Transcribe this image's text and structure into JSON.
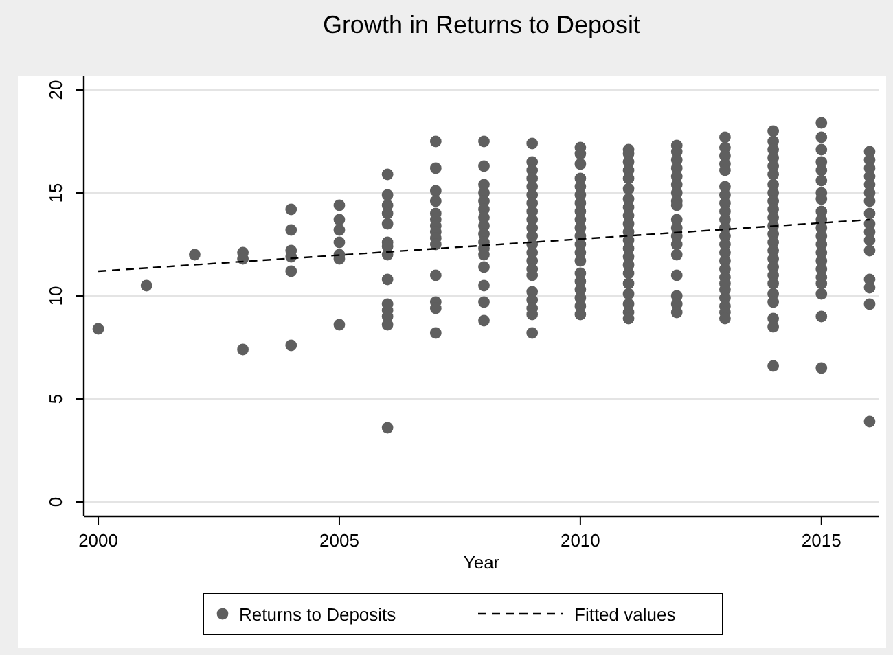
{
  "chart_data": {
    "type": "scatter",
    "title": "Growth in Returns to Deposit",
    "xlabel": "Year",
    "xlim": [
      1999.7,
      2016.2
    ],
    "xticks": [
      2000,
      2005,
      2010,
      2015
    ],
    "ylim": [
      -0.7,
      20.7
    ],
    "yticks": [
      0,
      5,
      10,
      15,
      20
    ],
    "grid": "y",
    "legend": "bottom",
    "series": [
      {
        "name": "Returns to Deposits",
        "color": "#5f5f5f",
        "marker": "circle",
        "x": [
          2000,
          2001,
          2002,
          2003,
          2003,
          2003,
          2004,
          2004,
          2004,
          2004,
          2004,
          2004,
          2005,
          2005,
          2005,
          2005,
          2005,
          2005,
          2005,
          2006,
          2006,
          2006,
          2006,
          2006,
          2006,
          2006,
          2006,
          2006,
          2006,
          2006,
          2006,
          2006,
          2006,
          2007,
          2007,
          2007,
          2007,
          2007,
          2007,
          2007,
          2007,
          2007,
          2007,
          2007,
          2007,
          2007,
          2007,
          2008,
          2008,
          2008,
          2008,
          2008,
          2008,
          2008,
          2008,
          2008,
          2008,
          2008,
          2008,
          2008,
          2008,
          2008,
          2008,
          2009,
          2009,
          2009,
          2009,
          2009,
          2009,
          2009,
          2009,
          2009,
          2009,
          2009,
          2009,
          2009,
          2009,
          2009,
          2009,
          2009,
          2009,
          2009,
          2009,
          2009,
          2010,
          2010,
          2010,
          2010,
          2010,
          2010,
          2010,
          2010,
          2010,
          2010,
          2010,
          2010,
          2010,
          2010,
          2010,
          2010,
          2010,
          2010,
          2010,
          2010,
          2011,
          2011,
          2011,
          2011,
          2011,
          2011,
          2011,
          2011,
          2011,
          2011,
          2011,
          2011,
          2011,
          2011,
          2011,
          2011,
          2011,
          2011,
          2011,
          2011,
          2011,
          2012,
          2012,
          2012,
          2012,
          2012,
          2012,
          2012,
          2012,
          2012,
          2012,
          2012,
          2012,
          2012,
          2012,
          2012,
          2012,
          2012,
          2012,
          2013,
          2013,
          2013,
          2013,
          2013,
          2013,
          2013,
          2013,
          2013,
          2013,
          2013,
          2013,
          2013,
          2013,
          2013,
          2013,
          2013,
          2013,
          2013,
          2013,
          2013,
          2013,
          2013,
          2014,
          2014,
          2014,
          2014,
          2014,
          2014,
          2014,
          2014,
          2014,
          2014,
          2014,
          2014,
          2014,
          2014,
          2014,
          2014,
          2014,
          2014,
          2014,
          2014,
          2014,
          2014,
          2014,
          2014,
          2015,
          2015,
          2015,
          2015,
          2015,
          2015,
          2015,
          2015,
          2015,
          2015,
          2015,
          2015,
          2015,
          2015,
          2015,
          2015,
          2015,
          2015,
          2015,
          2015,
          2015,
          2016,
          2016,
          2016,
          2016,
          2016,
          2016,
          2016,
          2016,
          2016,
          2016,
          2016,
          2016,
          2016,
          2016,
          2016,
          2016
        ],
        "values": [
          8.4,
          10.5,
          12.0,
          12.1,
          11.8,
          7.4,
          14.2,
          13.2,
          12.2,
          11.9,
          11.2,
          7.6,
          14.4,
          13.7,
          13.2,
          12.6,
          12.0,
          11.8,
          8.6,
          15.9,
          14.9,
          14.4,
          14.0,
          13.5,
          12.6,
          12.4,
          12.0,
          10.8,
          9.6,
          9.3,
          9.0,
          8.6,
          3.6,
          17.5,
          16.2,
          15.1,
          14.6,
          14.0,
          13.7,
          13.4,
          13.1,
          12.8,
          12.5,
          11.0,
          9.7,
          9.4,
          8.2,
          17.5,
          16.3,
          15.4,
          15.0,
          14.6,
          14.2,
          13.8,
          13.4,
          13.0,
          12.6,
          12.3,
          12.0,
          11.4,
          10.5,
          9.7,
          8.8,
          17.4,
          16.5,
          16.1,
          15.7,
          15.3,
          14.9,
          14.5,
          14.1,
          13.7,
          13.3,
          12.9,
          12.5,
          12.1,
          11.7,
          11.3,
          11.0,
          10.2,
          9.8,
          9.4,
          9.1,
          8.2,
          17.2,
          16.9,
          16.4,
          15.7,
          15.3,
          14.9,
          14.5,
          14.1,
          13.7,
          13.3,
          12.9,
          12.5,
          12.1,
          11.7,
          11.1,
          10.7,
          10.3,
          9.9,
          9.5,
          9.1,
          17.1,
          16.9,
          16.5,
          16.1,
          15.7,
          15.2,
          14.7,
          14.3,
          13.9,
          13.5,
          13.1,
          12.7,
          12.3,
          11.9,
          11.5,
          11.1,
          10.6,
          10.1,
          9.6,
          9.2,
          8.9,
          17.3,
          17.0,
          16.6,
          16.2,
          15.8,
          15.4,
          15.0,
          14.6,
          14.4,
          13.7,
          13.3,
          12.9,
          12.5,
          12.0,
          11.0,
          10.0,
          9.6,
          9.2,
          17.7,
          17.2,
          16.8,
          16.4,
          16.1,
          15.3,
          14.9,
          14.5,
          14.1,
          13.7,
          13.3,
          12.9,
          12.5,
          12.1,
          11.7,
          11.3,
          10.9,
          10.6,
          10.3,
          9.9,
          9.5,
          9.2,
          8.9,
          18.0,
          17.5,
          17.1,
          16.7,
          16.3,
          15.9,
          15.4,
          15.0,
          14.6,
          14.2,
          13.8,
          13.4,
          13.0,
          12.6,
          12.2,
          11.8,
          11.4,
          11.0,
          10.6,
          10.1,
          9.7,
          8.9,
          8.5,
          6.6,
          18.4,
          17.7,
          17.1,
          16.5,
          16.1,
          15.6,
          15.0,
          14.7,
          14.1,
          13.7,
          13.3,
          12.9,
          12.5,
          12.1,
          11.7,
          11.3,
          10.9,
          10.6,
          10.1,
          9.0,
          6.5,
          17.0,
          16.6,
          16.2,
          15.8,
          15.4,
          15.0,
          14.6,
          14.0,
          13.5,
          13.1,
          12.7,
          12.2,
          10.8,
          10.4,
          9.6,
          3.9
        ]
      },
      {
        "name": "Fitted values",
        "type": "line",
        "color": "#000000",
        "line_style": "dashed",
        "marker": "none",
        "x": [
          2000,
          2016
        ],
        "values": [
          11.2,
          13.7
        ]
      }
    ]
  }
}
